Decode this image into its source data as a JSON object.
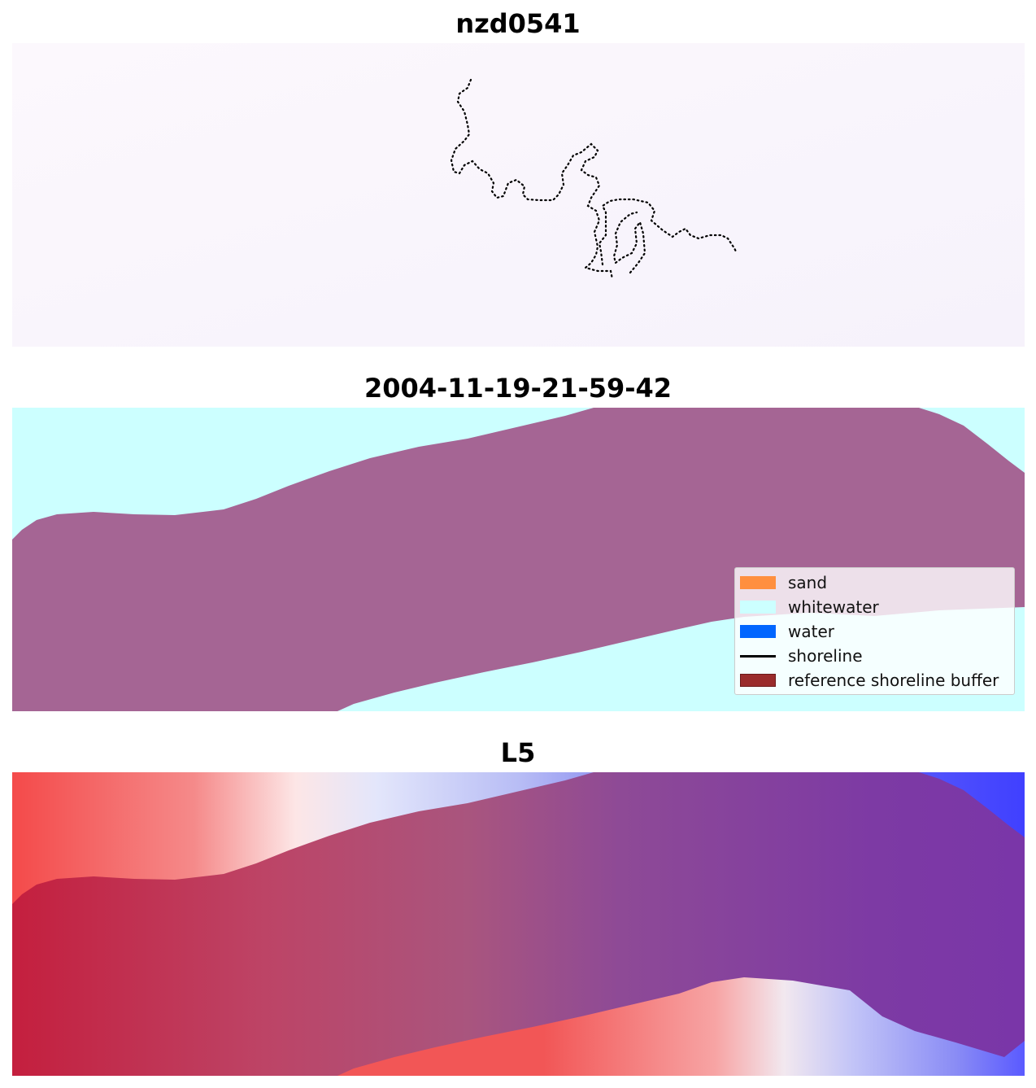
{
  "panels": [
    {
      "title": "nzd0541",
      "background": "#fbf7fc"
    },
    {
      "title": "2004-11-19-21-59-42",
      "whitewater_color": "#ccffff",
      "land_color": "#a56594"
    },
    {
      "title": "L5"
    }
  ],
  "legend": {
    "items": [
      {
        "label": "sand",
        "color": "#ff8f3f",
        "kind": "patch"
      },
      {
        "label": "whitewater",
        "color": "#ccffff",
        "kind": "patch"
      },
      {
        "label": "water",
        "color": "#0066ff",
        "kind": "patch"
      },
      {
        "label": "shoreline",
        "color": "#000000",
        "kind": "line"
      },
      {
        "label": "reference shoreline buffer",
        "color": "#9a2c2c",
        "kind": "patch"
      }
    ]
  }
}
